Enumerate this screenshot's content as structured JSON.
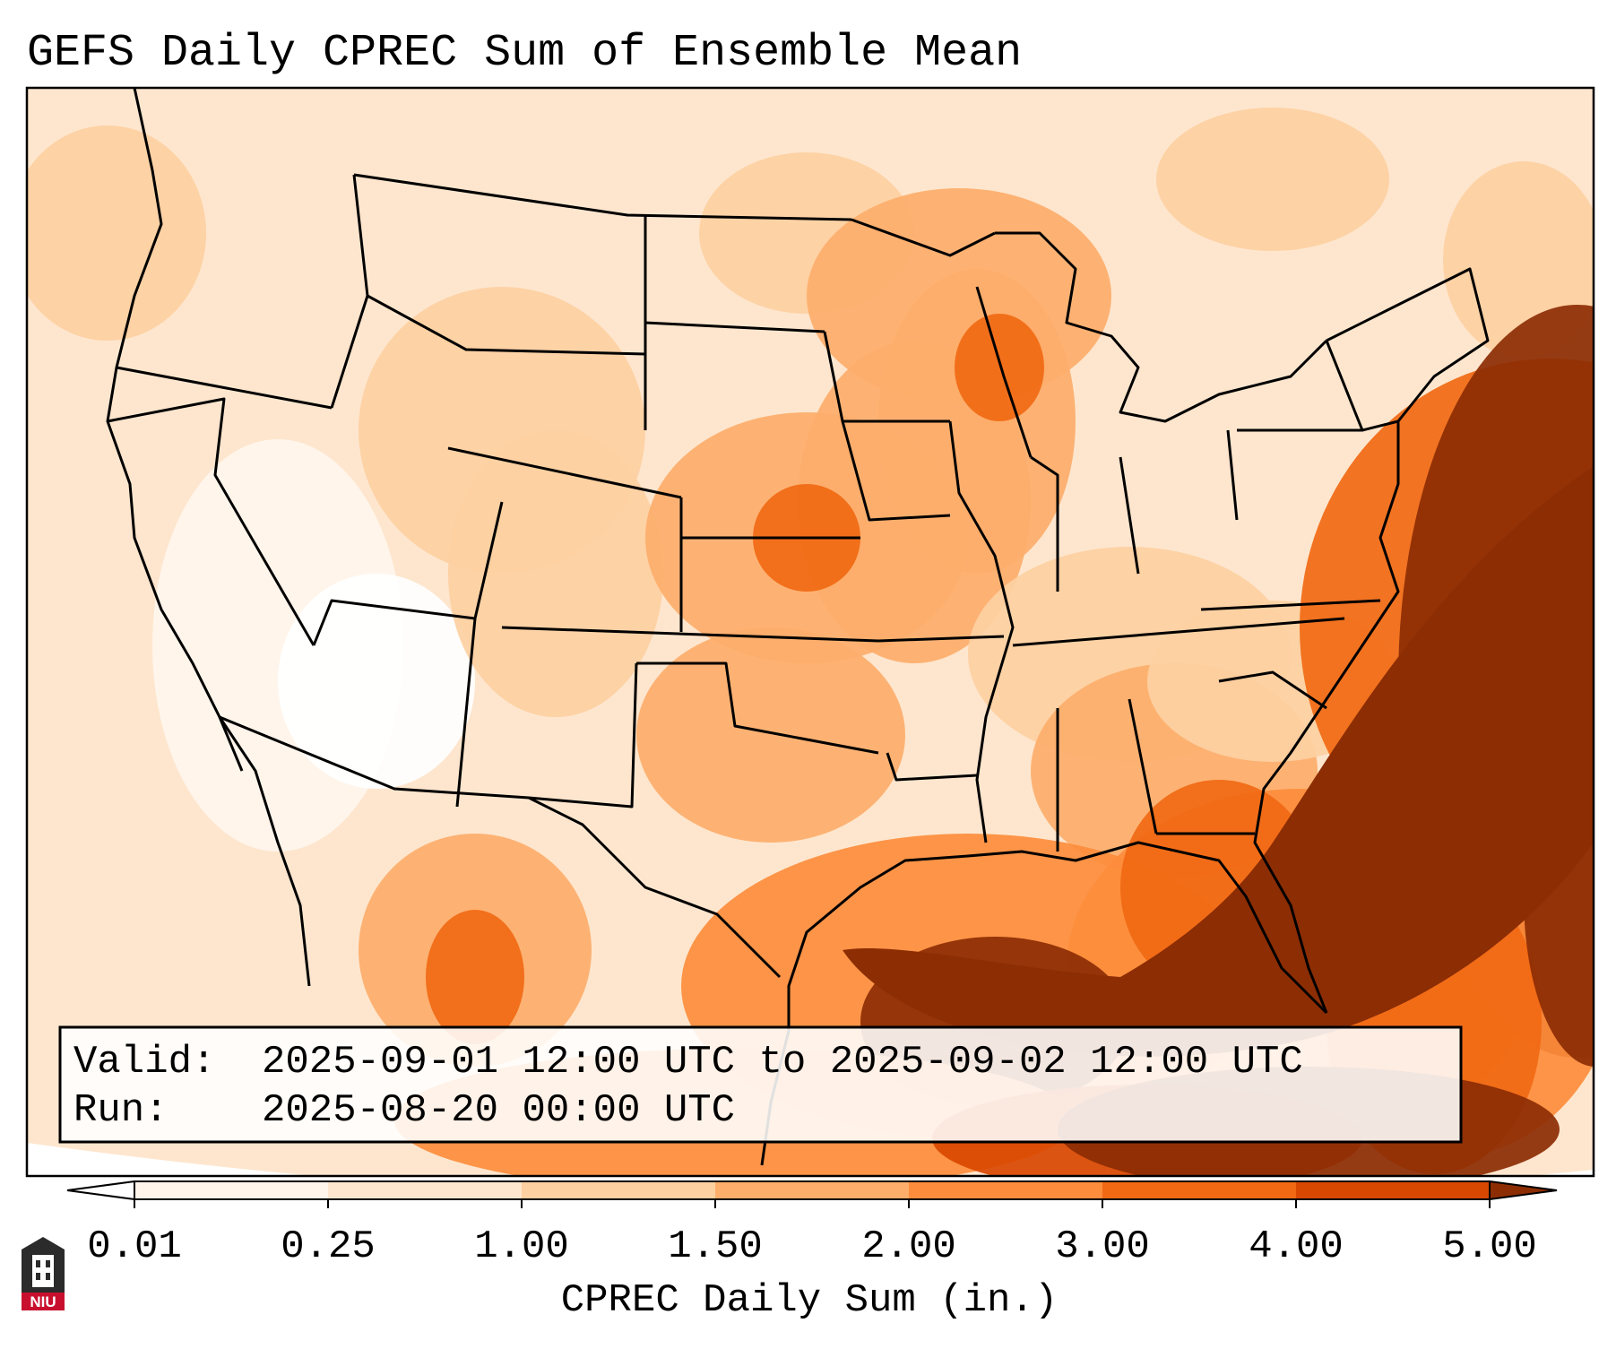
{
  "title": "GEFS Daily CPREC Sum of Ensemble Mean",
  "info_box": {
    "valid_label": "Valid:",
    "valid_value": "2025-09-01 12:00 UTC to 2025-09-02 12:00 UTC",
    "run_label": "Run:",
    "run_value": "2025-08-20 00:00 UTC"
  },
  "colorbar": {
    "label": "CPREC Daily Sum (in.)",
    "ticks": [
      "0.01",
      "0.25",
      "1.00",
      "1.50",
      "2.00",
      "3.00",
      "4.00",
      "5.00"
    ],
    "colors": [
      "#fff5eb",
      "#fee6ce",
      "#fdd0a2",
      "#fdae6b",
      "#fd8d3c",
      "#f16913",
      "#d94801",
      "#8c2d04"
    ],
    "under_color": "#ffffff",
    "over_color": "#8c2d04"
  },
  "logo": {
    "text": "NIU",
    "colors": {
      "shield": "#2b2b2b",
      "banner": "#c8102e"
    }
  },
  "map": {
    "ocean_color": "#fee6ce",
    "border_color": "#000000"
  }
}
